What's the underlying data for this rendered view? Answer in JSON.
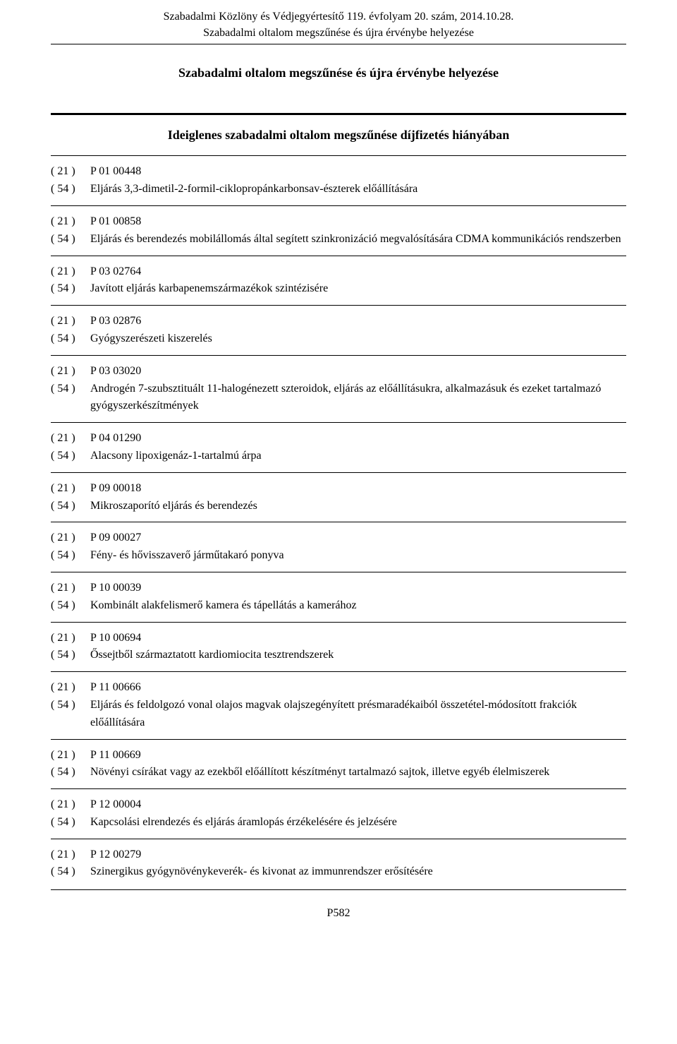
{
  "header": {
    "line1": "Szabadalmi Közlöny és Védjegyértesítő 119. évfolyam 20. szám, 2014.10.28.",
    "line2": "Szabadalmi oltalom megszűnése és újra érvénybe helyezése"
  },
  "doc_title": "Szabadalmi oltalom megszűnése és újra érvénybe helyezése",
  "section_heading": "Ideiglenes szabadalmi oltalom megszűnése díjfizetés hiányában",
  "code_labels": {
    "c21": "( 21 )",
    "c54": "( 54 )"
  },
  "entries": [
    {
      "c21": "P 01 00448",
      "c54": "Eljárás 3,3-dimetil-2-formil-ciklopropánkarbonsav-észterek előállítására"
    },
    {
      "c21": "P 01 00858",
      "c54": "Eljárás és berendezés mobilállomás által segített szinkronizáció megvalósítására CDMA kommunikációs rendszerben"
    },
    {
      "c21": "P 03 02764",
      "c54": "Javított eljárás karbapenemszármazékok szintézisére"
    },
    {
      "c21": "P 03 02876",
      "c54": "Gyógyszerészeti kiszerelés"
    },
    {
      "c21": "P 03 03020",
      "c54": "Androgén 7-szubsztituált 11-halogénezett szteroidok, eljárás az előállításukra, alkalmazásuk és ezeket tartalmazó gyógyszerkészítmények"
    },
    {
      "c21": "P 04 01290",
      "c54": "Alacsony lipoxigenáz-1-tartalmú árpa"
    },
    {
      "c21": "P 09 00018",
      "c54": "Mikroszaporító eljárás és berendezés"
    },
    {
      "c21": "P 09 00027",
      "c54": "Fény- és hővisszaverő járműtakaró ponyva"
    },
    {
      "c21": "P 10 00039",
      "c54": "Kombinált alakfelismerő kamera és tápellátás a kamerához"
    },
    {
      "c21": "P 10 00694",
      "c54": "Őssejtből származtatott kardiomiocita tesztrendszerek"
    },
    {
      "c21": "P 11 00666",
      "c54": "Eljárás és feldolgozó vonal olajos magvak olajszegényített présmaradékaiból összetétel-módosított frakciók előállítására"
    },
    {
      "c21": "P 11 00669",
      "c54": "Növényi csírákat vagy az ezekből előállított készítményt tartalmazó sajtok, illetve egyéb élelmiszerek"
    },
    {
      "c21": "P 12 00004",
      "c54": "Kapcsolási elrendezés és eljárás áramlopás érzékelésére és jelzésére"
    },
    {
      "c21": "P 12 00279",
      "c54": "Szinergikus gyógynövénykeverék- és kivonat az immunrendszer erősítésére"
    }
  ],
  "page_number": "P582"
}
